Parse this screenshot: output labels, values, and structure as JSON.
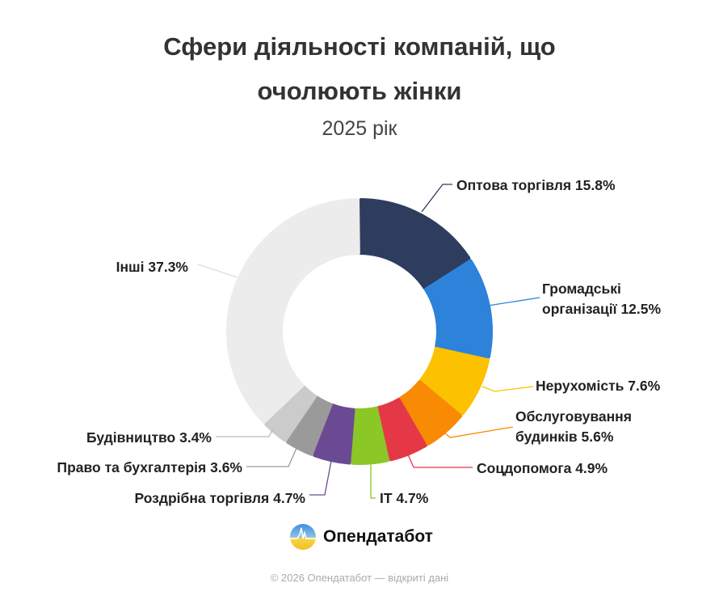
{
  "chart_data": {
    "type": "pie",
    "variant": "donut",
    "title": "Сфери діяльності компаній, що очолюють жінки",
    "subtitle": "2025 рік",
    "unit": "%",
    "start_angle": "12 o'clock, clockwise",
    "legend": "none (leader-line labels)",
    "slices": [
      {
        "label": "Оптова торгівля",
        "value": 15.8,
        "text": "Оптова торгівля 15.8%",
        "color": "#2e3d5e"
      },
      {
        "label": "Громадські організації",
        "value": 12.5,
        "text1": "Громадські",
        "text2": "організації 12.5%",
        "color": "#2d82d9"
      },
      {
        "label": "Нерухомість",
        "value": 7.6,
        "text": "Нерухомість 7.6%",
        "color": "#fcc200"
      },
      {
        "label": "Обслуговування будинків",
        "value": 5.6,
        "text1": "Обслуговування",
        "text2": "будинків 5.6%",
        "color": "#f98a04"
      },
      {
        "label": "Соцдопомога",
        "value": 4.9,
        "text": "Соцдопомога 4.9%",
        "color": "#e53847"
      },
      {
        "label": "IT",
        "value": 4.7,
        "text": "IT 4.7%",
        "color": "#8bc726"
      },
      {
        "label": "Роздрібна торгівля",
        "value": 4.7,
        "text": "Роздрібна торгівля 4.7%",
        "color": "#6a4b93"
      },
      {
        "label": "Право та бухгалтерія",
        "value": 3.6,
        "text": "Право та бухгалтерія 3.6%",
        "color": "#9a9a9a"
      },
      {
        "label": "Будівництво",
        "value": 3.4,
        "text": "Будівництво 3.4%",
        "color": "#cbcbcb"
      },
      {
        "label": "Інші",
        "value": 37.3,
        "text": "Інші 37.3%",
        "color": "#ececec"
      }
    ]
  },
  "header": {
    "title_line1": "Сфери діяльності компаній, що",
    "title_line2": "очолюють жінки",
    "subtitle": "2025 рік"
  },
  "brand": {
    "name": "Опендатабот",
    "icon": "opendatabot-logo"
  },
  "footer": {
    "text": "© 2026 Опендатабот — відкриті дані"
  }
}
